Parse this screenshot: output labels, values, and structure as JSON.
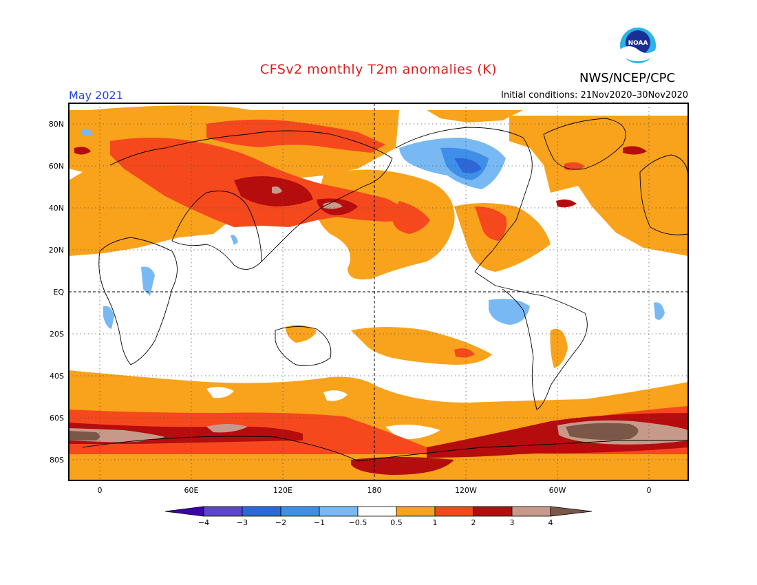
{
  "header": {
    "title": "CFSv2 monthly T2m anomalies (K)",
    "agency": "NWS/NCEP/CPC",
    "month": "May 2021",
    "initial_conditions": "Initial conditions: 21Nov2020–30Nov2020",
    "logo_text": "NOAA"
  },
  "map": {
    "lat_labels": [
      "80N",
      "60N",
      "40N",
      "20N",
      "EQ",
      "20S",
      "40S",
      "60S",
      "80S"
    ],
    "lon_labels": [
      "0",
      "60E",
      "120E",
      "180",
      "120W",
      "60W",
      "0"
    ]
  },
  "colorbar": {
    "tick_labels": [
      "−4",
      "−3",
      "−2",
      "−1",
      "−0.5",
      "0.5",
      "1",
      "2",
      "3",
      "4"
    ],
    "colors": [
      "#3a05a8",
      "#5a44d4",
      "#2c68d9",
      "#3f8fe8",
      "#78b9f3",
      "#ffffff",
      "#f9a21b",
      "#f5481d",
      "#b50d0d",
      "#c7998a",
      "#7b5748"
    ]
  },
  "colors": {
    "title": "#d81e1e",
    "month": "#1f43e0"
  }
}
